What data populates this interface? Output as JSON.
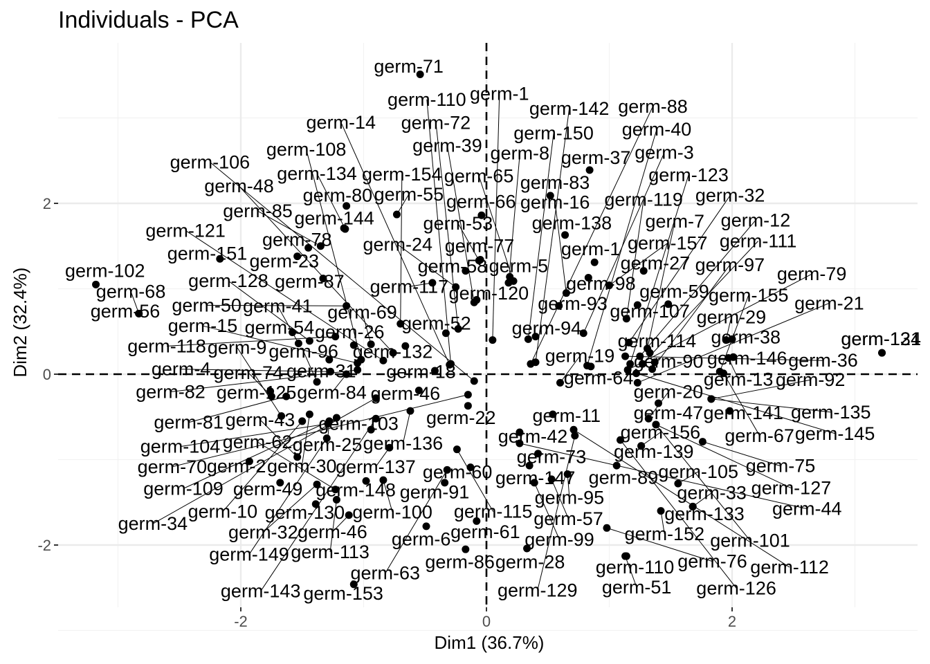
{
  "chart_data": {
    "type": "scatter",
    "title": "Individuals - PCA",
    "xlabel": "Dim1 (36.7%)",
    "ylabel": "Dim2 (32.4%)",
    "xlim": [
      -3.6,
      3.6
    ],
    "ylim": [
      -2.7,
      3.8
    ],
    "x_ticks": [
      -2,
      0,
      2
    ],
    "y_ticks": [
      -2,
      0,
      2
    ],
    "x_tick_labels": [
      "-2",
      "0",
      "2"
    ],
    "y_tick_labels": [
      "-2",
      "0",
      "2"
    ],
    "grid": true,
    "reference_lines": [
      {
        "axis": "x",
        "value": 0,
        "style": "dashed"
      },
      {
        "axis": "y",
        "value": 0,
        "style": "dashed"
      }
    ],
    "point_color": "#000000",
    "points": [
      {
        "label": "germ-71",
        "x": -0.54,
        "y": 3.51
      },
      {
        "label": "germ-53",
        "x": -0.06,
        "y": 1.33
      },
      {
        "label": "germ-66",
        "x": -0.04,
        "y": 1.86
      },
      {
        "label": "germ-37",
        "x": 0.84,
        "y": 2.39
      },
      {
        "label": "germ-83",
        "x": 0.52,
        "y": 2.09
      },
      {
        "label": "germ-80",
        "x": -1.14,
        "y": 1.97
      },
      {
        "label": "germ-55",
        "x": -0.73,
        "y": 1.87
      },
      {
        "label": "germ-58",
        "x": -0.17,
        "y": 1.21
      },
      {
        "label": "germ-77",
        "x": -0.05,
        "y": 1.34
      },
      {
        "label": "germ-98",
        "x": 0.83,
        "y": 1.13
      },
      {
        "label": "germ-27",
        "x": 1.28,
        "y": 1.21
      },
      {
        "label": "germ-151",
        "x": -2.17,
        "y": 1.35
      },
      {
        "label": "germ-144",
        "x": -1.16,
        "y": 1.71
      },
      {
        "label": "germ-134",
        "x": -1.15,
        "y": 1.7
      },
      {
        "label": "germ-138",
        "x": 0.64,
        "y": 1.63
      },
      {
        "label": "germ-157",
        "x": 1.0,
        "y": 1.04
      },
      {
        "label": "germ-59",
        "x": 1.48,
        "y": 0.82
      },
      {
        "label": "germ-78",
        "x": -1.45,
        "y": 1.48
      },
      {
        "label": "germ-85",
        "x": -1.35,
        "y": 1.5
      },
      {
        "label": "germ-117",
        "x": -0.44,
        "y": 1.07
      },
      {
        "label": "germ-5",
        "x": 0.19,
        "y": 1.14
      },
      {
        "label": "germ-93",
        "x": 0.59,
        "y": 0.8
      },
      {
        "label": "germ-107",
        "x": 1.23,
        "y": 0.81
      },
      {
        "label": "germ-29",
        "x": 1.95,
        "y": 0.4
      },
      {
        "label": "germ-155",
        "x": 1.9,
        "y": 0.03
      },
      {
        "label": "germ-102",
        "x": -3.18,
        "y": 1.05
      },
      {
        "label": "germ-23",
        "x": -1.54,
        "y": 1.38
      },
      {
        "label": "germ-87",
        "x": -1.33,
        "y": 1.12
      },
      {
        "label": "germ-24",
        "x": -0.25,
        "y": 1.02
      },
      {
        "label": "germ-120",
        "x": -0.08,
        "y": 0.87
      },
      {
        "label": "germ-8",
        "x": 0.18,
        "y": 1.07
      },
      {
        "label": "germ-1",
        "x": 0.88,
        "y": 1.31
      },
      {
        "label": "germ-119",
        "x": 1.14,
        "y": 0.65
      },
      {
        "label": "germ-114",
        "x": 1.33,
        "y": 0.25
      },
      {
        "label": "germ-97",
        "x": 1.35,
        "y": 0.06
      },
      {
        "label": "germ-50",
        "x": -1.14,
        "y": 0.8
      },
      {
        "label": "germ-41",
        "x": -1.53,
        "y": 0.36
      },
      {
        "label": "germ-154",
        "x": -0.7,
        "y": 0.59
      },
      {
        "label": "germ-39",
        "x": -0.1,
        "y": 0.84
      },
      {
        "label": "germ-65",
        "x": 0.22,
        "y": 1.09
      },
      {
        "label": "germ-16",
        "x": 0.65,
        "y": 0.95
      },
      {
        "label": "germ-7",
        "x": 1.31,
        "y": 0.3
      },
      {
        "label": "germ-12",
        "x": 1.25,
        "y": 0.21
      },
      {
        "label": "germ-13",
        "x": 1.97,
        "y": 0.19
      },
      {
        "label": "germ-56",
        "x": -2.83,
        "y": 0.71
      },
      {
        "label": "germ-118",
        "x": -1.23,
        "y": 0.44
      },
      {
        "label": "germ-69",
        "x": -0.94,
        "y": 0.35
      },
      {
        "label": "germ-48",
        "x": -0.76,
        "y": 0.25
      },
      {
        "label": "germ-52",
        "x": -0.33,
        "y": 0.48
      },
      {
        "label": "germ-150",
        "x": 0.34,
        "y": 0.41
      },
      {
        "label": "germ-36",
        "x": 1.13,
        "y": 0.21
      },
      {
        "label": "germ-123",
        "x": 1.17,
        "y": 0.12
      },
      {
        "label": "germ-38",
        "x": 2.0,
        "y": 0.41
      },
      {
        "label": "germ-131",
        "x": 3.22,
        "y": 0.25
      },
      {
        "label": "germ-68",
        "x": -2.83,
        "y": 0.71
      },
      {
        "label": "germ-54",
        "x": -1.58,
        "y": 0.49
      },
      {
        "label": "germ-128",
        "x": -1.44,
        "y": 0.39
      },
      {
        "label": "germ-26",
        "x": -1.08,
        "y": 0.34
      },
      {
        "label": "germ-72",
        "x": -0.23,
        "y": 0.53
      },
      {
        "label": "germ-94",
        "x": 0.4,
        "y": 0.44
      },
      {
        "label": "germ-3",
        "x": 0.79,
        "y": 0.48
      },
      {
        "label": "germ-32",
        "x": 1.16,
        "y": 0.37
      },
      {
        "label": "germ-111",
        "x": 1.27,
        "y": 0.12
      },
      {
        "label": "germ-90",
        "x": 1.37,
        "y": 0.14
      },
      {
        "label": "germ-124",
        "x": 3.22,
        "y": 0.25
      },
      {
        "label": "germ-132",
        "x": -0.66,
        "y": 0.33
      },
      {
        "label": "germ-1g",
        "x": 0.05,
        "y": 0.4
      },
      {
        "label": "germ-88",
        "x": 0.36,
        "y": 0.12
      },
      {
        "label": "germ-40",
        "x": 0.82,
        "y": 0.1
      },
      {
        "label": "germ-79",
        "x": 1.15,
        "y": 0.05
      },
      {
        "label": "germ-108",
        "x": -1.02,
        "y": 0.17
      },
      {
        "label": "germ-31",
        "x": -1.28,
        "y": 0.17
      },
      {
        "label": "germ-15",
        "x": -1.05,
        "y": 0.13
      },
      {
        "label": "germ-121",
        "x": -0.84,
        "y": 0.16
      },
      {
        "label": "germ-110",
        "x": -0.29,
        "y": 0.12
      },
      {
        "label": "germ-142",
        "x": 0.4,
        "y": 0.14
      },
      {
        "label": "germ-146",
        "x": 2.01,
        "y": 0.2
      },
      {
        "label": "germ-67",
        "x": 1.93,
        "y": 0.01
      },
      {
        "label": "germ-96",
        "x": -1.38,
        "y": -0.09
      },
      {
        "label": "germ-4",
        "x": -1.27,
        "y": 0.03
      },
      {
        "label": "germ-18",
        "x": -0.42,
        "y": 0.04
      },
      {
        "label": "germ-14",
        "x": -0.3,
        "y": 0.11
      },
      {
        "label": "germ-106",
        "x": -0.1,
        "y": -0.08
      },
      {
        "label": "germ-64",
        "x": 0.85,
        "y": 0.09
      },
      {
        "label": "germ-21",
        "x": 1.23,
        "y": -0.1
      },
      {
        "label": "germ-145",
        "x": 1.22,
        "y": 0.01
      },
      {
        "label": "germ-84",
        "x": -1.14,
        "y": 0.0
      },
      {
        "label": "germ-82",
        "x": -1.05,
        "y": 0.05
      },
      {
        "label": "germ-81",
        "x": -1.63,
        "y": -0.26
      },
      {
        "label": "germ-34",
        "x": -0.9,
        "y": -0.28
      },
      {
        "label": "germ-46",
        "x": -0.55,
        "y": -0.19
      },
      {
        "label": "germ-70",
        "x": -0.15,
        "y": -0.24
      },
      {
        "label": "germ-19",
        "x": 0.6,
        "y": -0.1
      },
      {
        "label": "germ-47",
        "x": 1.4,
        "y": -0.34
      },
      {
        "label": "germ-92",
        "x": 1.83,
        "y": -0.29
      },
      {
        "label": "germ-135",
        "x": 1.83,
        "y": -0.29
      },
      {
        "label": "germ-125",
        "x": -1.76,
        "y": -0.2
      },
      {
        "label": "germ-9",
        "x": -1.67,
        "y": -0.49
      },
      {
        "label": "germ-104",
        "x": -1.29,
        "y": -0.58
      },
      {
        "label": "germ-109",
        "x": -1.22,
        "y": -0.51
      },
      {
        "label": "germ-136",
        "x": -0.62,
        "y": -0.43
      },
      {
        "label": "germ-22",
        "x": -0.15,
        "y": -0.37
      },
      {
        "label": "germ-11",
        "x": 0.54,
        "y": -0.47
      },
      {
        "label": "germ-20",
        "x": 1.32,
        "y": -0.52
      },
      {
        "label": "germ-141",
        "x": 1.98,
        "y": -0.43
      },
      {
        "label": "germ-25",
        "x": -1.28,
        "y": -0.55
      },
      {
        "label": "germ-10",
        "x": -1.5,
        "y": -0.55
      },
      {
        "label": "germ-149",
        "x": -1.3,
        "y": -0.75
      },
      {
        "label": "germ-137",
        "x": -0.79,
        "y": -0.86
      },
      {
        "label": "germ-42",
        "x": 0.27,
        "y": -0.68
      },
      {
        "label": "germ-112",
        "x": 0.71,
        "y": -0.65
      },
      {
        "label": "germ-127",
        "x": 1.38,
        "y": -0.59
      },
      {
        "label": "germ-101",
        "x": 1.38,
        "y": -0.59
      },
      {
        "label": "germ-75",
        "x": 1.76,
        "y": -0.79
      },
      {
        "label": "germ-2",
        "x": -1.93,
        "y": -1.02
      },
      {
        "label": "germ-43",
        "x": -1.54,
        "y": -0.97
      },
      {
        "label": "germ-148",
        "x": -0.98,
        "y": -1.25
      },
      {
        "label": "germ-63",
        "x": -0.32,
        "y": -1.12
      },
      {
        "label": "germ-44",
        "x": 0.27,
        "y": -0.81
      },
      {
        "label": "germ-73",
        "x": 0.42,
        "y": -0.93
      },
      {
        "label": "germ-126",
        "x": 1.09,
        "y": -0.77
      },
      {
        "label": "germ-139",
        "x": 1.26,
        "y": -0.84
      },
      {
        "label": "germ-156",
        "x": 1.26,
        "y": -0.84
      },
      {
        "label": "germ-49",
        "x": -1.68,
        "y": -1.27
      },
      {
        "label": "germ-62",
        "x": -1.23,
        "y": -1.35
      },
      {
        "label": "germ-100",
        "x": -0.84,
        "y": -1.24
      },
      {
        "label": "germ-91",
        "x": -0.34,
        "y": -1.27
      },
      {
        "label": "germ-99",
        "x": 0.39,
        "y": -1.27
      },
      {
        "label": "germ-95",
        "x": 0.66,
        "y": -1.17
      },
      {
        "label": "germ-129",
        "x": 0.72,
        "y": -0.72
      },
      {
        "label": "germ-105",
        "x": 1.56,
        "y": -1.28
      },
      {
        "label": "germ-89",
        "x": 1.06,
        "y": -1.07
      },
      {
        "label": "germ-130",
        "x": -1.39,
        "y": -1.52
      },
      {
        "label": "germ-46b",
        "x": -1.12,
        "y": -1.65
      },
      {
        "label": "germ-103",
        "x": -0.94,
        "y": -0.65
      },
      {
        "label": "germ-61",
        "x": -0.08,
        "y": -1.72
      },
      {
        "label": "germ-147",
        "x": 0.35,
        "y": -1.07
      },
      {
        "label": "germ-152",
        "x": 1.42,
        "y": -1.6
      },
      {
        "label": "germ-133",
        "x": 1.68,
        "y": -1.55
      },
      {
        "label": "germ-33",
        "x": 1.68,
        "y": -1.55
      },
      {
        "label": "germ-74",
        "x": -1.75,
        "y": -0.26
      },
      {
        "label": "germ-30",
        "x": -1.44,
        "y": -0.47
      },
      {
        "label": "germ-143",
        "x": -0.9,
        "y": -0.52
      },
      {
        "label": "germ-6",
        "x": -0.49,
        "y": -1.78
      },
      {
        "label": "germ-57",
        "x": 0.53,
        "y": -1.23
      },
      {
        "label": "germ-76",
        "x": 0.98,
        "y": -1.8
      },
      {
        "label": "germ-51",
        "x": 1.13,
        "y": -2.13
      },
      {
        "label": "germ-115",
        "x": -0.24,
        "y": -0.88
      },
      {
        "label": "germ-60",
        "x": -0.13,
        "y": -1.09
      },
      {
        "label": "germ-32b",
        "x": -1.38,
        "y": -1.29
      },
      {
        "label": "germ-113",
        "x": -1.22,
        "y": -1.47
      },
      {
        "label": "germ-153",
        "x": -1.08,
        "y": -2.46
      },
      {
        "label": "germ-86",
        "x": -0.17,
        "y": -2.05
      },
      {
        "label": "germ-28",
        "x": 0.33,
        "y": -2.04
      },
      {
        "label": "germ-110b",
        "x": 1.14,
        "y": -2.13
      }
    ]
  },
  "labels": {
    "germ-1g": "germ-1",
    "germ-46b": "germ-46",
    "germ-32b": "germ-32",
    "germ-110b": "germ-110"
  }
}
